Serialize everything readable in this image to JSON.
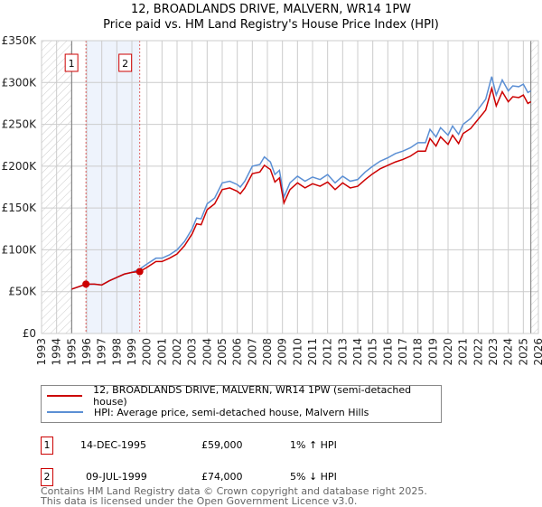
{
  "title": "12, BROADLANDS DRIVE, MALVERN, WR14 1PW",
  "subtitle": "Price paid vs. HM Land Registry's House Price Index (HPI)",
  "chart_data": {
    "type": "line",
    "title": "12, BROADLANDS DRIVE, MALVERN, WR14 1PW",
    "subtitle": "Price paid vs. HM Land Registry's House Price Index (HPI)",
    "xlim": [
      1993,
      2026
    ],
    "ylim": [
      0,
      350000
    ],
    "x_ticks": [
      "1993",
      "1994",
      "1995",
      "1996",
      "1997",
      "1998",
      "1999",
      "2000",
      "2001",
      "2002",
      "2003",
      "2004",
      "2005",
      "2006",
      "2007",
      "2008",
      "2009",
      "2010",
      "2011",
      "2012",
      "2013",
      "2014",
      "2015",
      "2016",
      "2017",
      "2018",
      "2019",
      "2020",
      "2021",
      "2022",
      "2023",
      "2024",
      "2025",
      "2026"
    ],
    "y_ticks": [
      {
        "v": 0,
        "label": "£0"
      },
      {
        "v": 50000,
        "label": "£50K"
      },
      {
        "v": 100000,
        "label": "£100K"
      },
      {
        "v": 150000,
        "label": "£150K"
      },
      {
        "v": 200000,
        "label": "£200K"
      },
      {
        "v": 250000,
        "label": "£250K"
      },
      {
        "v": 300000,
        "label": "£300K"
      },
      {
        "v": 350000,
        "label": "£350K"
      }
    ],
    "grid": true,
    "hatched_ranges": [
      [
        1993,
        1995
      ],
      [
        2025.5,
        2026
      ]
    ],
    "shaded_range": [
      1995.95,
      1999.52
    ],
    "series": [
      {
        "name": "12, BROADLANDS DRIVE, MALVERN, WR14 1PW (semi-detached house)",
        "color": "#cc0000",
        "x": [
          1995.0,
          1995.95,
          1996.5,
          1997,
          1997.5,
          1998,
          1998.5,
          1999,
          1999.52,
          2000,
          2000.6,
          2001,
          2001.5,
          2002,
          2002.5,
          2003,
          2003.3,
          2003.6,
          2004,
          2004.5,
          2005,
          2005.5,
          2006,
          2006.2,
          2006.5,
          2007,
          2007.5,
          2007.8,
          2008.2,
          2008.5,
          2008.8,
          2009.1,
          2009.5,
          2010,
          2010.5,
          2011,
          2011.5,
          2012,
          2012.5,
          2013,
          2013.5,
          2014,
          2014.5,
          2015,
          2015.5,
          2016,
          2016.5,
          2017,
          2017.5,
          2018,
          2018.5,
          2018.8,
          2019.2,
          2019.5,
          2020,
          2020.3,
          2020.7,
          2021,
          2021.5,
          2022,
          2022.5,
          2022.9,
          2023.2,
          2023.6,
          2024,
          2024.3,
          2024.7,
          2025,
          2025.3,
          2025.5
        ],
        "y": [
          53000,
          59000,
          59000,
          58000,
          63000,
          67000,
          71000,
          73000,
          74000,
          79000,
          86000,
          86000,
          90000,
          95000,
          105000,
          119000,
          131000,
          130000,
          148000,
          155000,
          172000,
          174000,
          170000,
          167000,
          174000,
          191000,
          193000,
          201000,
          196000,
          181000,
          186000,
          156000,
          172000,
          180000,
          174000,
          179000,
          176000,
          181000,
          172000,
          180000,
          174000,
          176000,
          184000,
          191000,
          197000,
          201000,
          205000,
          208000,
          212000,
          218000,
          218000,
          233000,
          224000,
          235000,
          226000,
          237000,
          227000,
          239000,
          245000,
          256000,
          267000,
          293000,
          272000,
          289000,
          277000,
          283000,
          282000,
          285000,
          275000,
          277000
        ]
      },
      {
        "name": "HPI: Average price, semi-detached house, Malvern Hills",
        "color": "#5b8fd4",
        "x": [
          1995.0,
          1995.95,
          1996.5,
          1997,
          1997.5,
          1998,
          1998.5,
          1999,
          1999.52,
          2000,
          2000.6,
          2001,
          2001.5,
          2002,
          2002.5,
          2003,
          2003.3,
          2003.6,
          2004,
          2004.5,
          2005,
          2005.5,
          2006,
          2006.2,
          2006.5,
          2007,
          2007.5,
          2007.8,
          2008.2,
          2008.5,
          2008.8,
          2009.1,
          2009.5,
          2010,
          2010.5,
          2011,
          2011.5,
          2012,
          2012.5,
          2013,
          2013.5,
          2014,
          2014.5,
          2015,
          2015.5,
          2016,
          2016.5,
          2017,
          2017.5,
          2018,
          2018.5,
          2018.8,
          2019.2,
          2019.5,
          2020,
          2020.3,
          2020.7,
          2021,
          2021.5,
          2022,
          2022.5,
          2022.9,
          2023.2,
          2023.6,
          2024,
          2024.3,
          2024.7,
          2025,
          2025.3,
          2025.5
        ],
        "y": [
          53000,
          58500,
          59000,
          58000,
          63000,
          67000,
          71000,
          73000,
          77000,
          83000,
          90000,
          90000,
          94000,
          100000,
          110000,
          125000,
          138000,
          137000,
          155000,
          162000,
          180000,
          182000,
          178000,
          175000,
          182000,
          200000,
          202000,
          211000,
          205000,
          190000,
          195000,
          163000,
          180000,
          188000,
          182000,
          187000,
          184000,
          190000,
          180000,
          188000,
          182000,
          184000,
          193000,
          200000,
          206000,
          210000,
          215000,
          218000,
          222000,
          228000,
          228000,
          244000,
          235000,
          246000,
          237000,
          248000,
          238000,
          250000,
          257000,
          268000,
          280000,
          307000,
          285000,
          303000,
          290000,
          296000,
          295000,
          298000,
          288000,
          290000
        ]
      }
    ],
    "sales": [
      {
        "id": "1",
        "x": 1995.95,
        "y": 59000
      },
      {
        "id": "2",
        "x": 1999.52,
        "y": 74000
      }
    ]
  },
  "legend": [
    {
      "label": "12, BROADLANDS DRIVE, MALVERN, WR14 1PW (semi-detached house)",
      "color": "#cc0000"
    },
    {
      "label": "HPI: Average price, semi-detached house, Malvern Hills",
      "color": "#5b8fd4"
    }
  ],
  "transactions": [
    {
      "num": "1",
      "date": "14-DEC-1995",
      "price": "£59,000",
      "hpi": "1% ↑ HPI"
    },
    {
      "num": "2",
      "date": "09-JUL-1999",
      "price": "£74,000",
      "hpi": "5% ↓ HPI"
    }
  ],
  "footer": {
    "line1": "Contains HM Land Registry data © Crown copyright and database right 2025.",
    "line2": "This data is licensed under the Open Government Licence v3.0."
  }
}
